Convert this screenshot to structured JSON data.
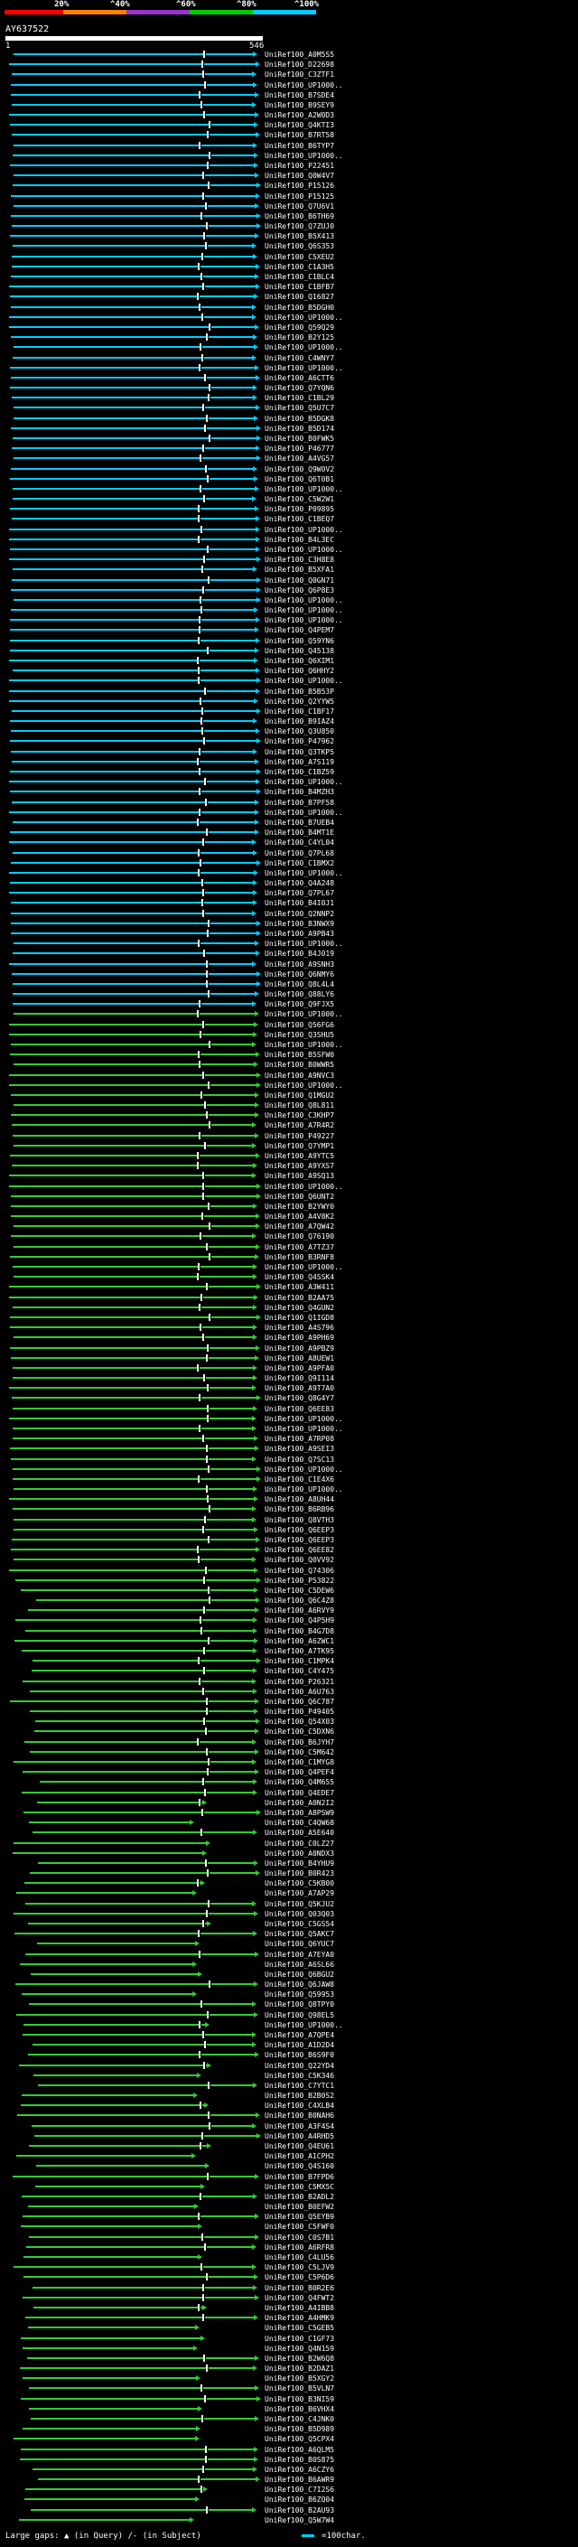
{
  "scale": {
    "labels": [
      "20%",
      "^40%",
      "^60%",
      "^80%",
      "^100%"
    ],
    "colors": [
      "#ff0000",
      "#ff8000",
      "#9933cc",
      "#00cc00",
      "#00ccff"
    ]
  },
  "query": {
    "name": "AY637522",
    "start": "1",
    "end": "546"
  },
  "legend": {
    "prefix": "Large gaps:",
    "query_gap": "(in Query)",
    "subject_gap": "/- (in Subject)",
    "scale_text": "=100char."
  },
  "colors": {
    "high": "#00ccff",
    "mid": "#33cc33",
    "axis": "#ffffff",
    "background": "#000000"
  },
  "hits": [
    "UniRef100_A0M5S5",
    "UniRef100_D22698",
    "UniRef100_C3ZTF1",
    "UniRef100_UP1000..",
    "UniRef100_B7SDE4",
    "UniRef100_B9SEY9",
    "UniRef100_A2W0D3",
    "UniRef100_Q4KTI3",
    "UniRef100_B7RT58",
    "UniRef100_B6TYP7",
    "UniRef100_UP1000..",
    "UniRef100_P22451",
    "UniRef100_Q0W4V7",
    "UniRef100_P15126",
    "UniRef100_P15125",
    "UniRef100_Q7U6V1",
    "UniRef100_B6TH69",
    "UniRef100_Q7ZUJ0",
    "UniRef100_B5X413",
    "UniRef100_Q6S353",
    "UniRef100_C5XEU2",
    "UniRef100_C1A3H5",
    "UniRef100_C1BLC4",
    "UniRef100_C1BFB7",
    "UniRef100_Q16827",
    "UniRef100_B5DGH0",
    "UniRef100_UP1000..",
    "UniRef100_Q59Q29",
    "UniRef100_B2Y125",
    "UniRef100_UP1000..",
    "UniRef100_C4WNY7",
    "UniRef100_UP1000..",
    "UniRef100_A6CTT6",
    "UniRef100_Q7YQN6",
    "UniRef100_C1BL29",
    "UniRef100_Q5U7C7",
    "UniRef100_B5DGK8",
    "UniRef100_B5D174",
    "UniRef100_B0FWK5",
    "UniRef100_P46777",
    "UniRef100_A4VG57",
    "UniRef100_Q9W0V2",
    "UniRef100_Q6T0B1",
    "UniRef100_UP1000..",
    "UniRef100_C5W2W1",
    "UniRef100_P09895",
    "UniRef100_C1BEQ7",
    "UniRef100_UP1000..",
    "UniRef100_B4L3EC",
    "UniRef100_UP1000..",
    "UniRef100_C3H8E8",
    "UniRef100_B5XFA1",
    "UniRef100_Q0GN71",
    "UniRef100_Q6P8E3",
    "UniRef100_UP1000..",
    "UniRef100_UP1000..",
    "UniRef100_UP1000..",
    "UniRef100_Q4PEM7",
    "UniRef100_Q59YN6",
    "UniRef100_Q45138",
    "UniRef100_Q6XIM1",
    "UniRef100_Q6HHY2",
    "UniRef100_UP1000..",
    "UniRef100_B5B53P",
    "UniRef100_Q2YYW5",
    "UniRef100_C1BF17",
    "UniRef100_B9IAZ4",
    "UniRef100_Q3U850",
    "UniRef100_P47962",
    "UniRef100_Q3TKP5",
    "UniRef100_A7S119",
    "UniRef100_C1BZ59",
    "UniRef100_UP1000..",
    "UniRef100_B4MZH3",
    "UniRef100_B7PF58",
    "UniRef100_UP1000..",
    "UniRef100_B7UEB4",
    "UniRef100_B4MT1E",
    "UniRef100_C4YL04",
    "UniRef100_Q7PL68",
    "UniRef100_C1BMX2",
    "UniRef100_UP1000..",
    "UniRef100_Q4A248",
    "UniRef100_Q7PL67",
    "UniRef100_B4I0J1",
    "UniRef100_Q2NNP2",
    "UniRef100_B3NWX9",
    "UniRef100_A9PB43",
    "UniRef100_UP1000..",
    "UniRef100_B4J019",
    "UniRef100_A9SNH3",
    "UniRef100_Q6NMY6",
    "UniRef100_Q8L4L4",
    "UniRef100_Q88LY6",
    "UniRef100_Q9FJX5",
    "UniRef100_UP1000..",
    "UniRef100_Q56FG6",
    "UniRef100_Q3SHU5",
    "UniRef100_UP1000..",
    "UniRef100_B5SFW0",
    "UniRef100_B0WWR5",
    "UniRef100_A9NVC3",
    "UniRef100_UP1000..",
    "UniRef100_Q1MGU2",
    "UniRef100_Q8L811",
    "UniRef100_C3KHP7",
    "UniRef100_A7R4R2",
    "UniRef100_P49227",
    "UniRef100_Q7YMP1",
    "UniRef100_A9YTC5",
    "UniRef100_A9YXS7",
    "UniRef100_A9SQ13",
    "UniRef100_UP1000..",
    "UniRef100_Q6UNT2",
    "UniRef100_B2YWY0",
    "UniRef100_A4V8K2",
    "UniRef100_A7QW42",
    "UniRef100_Q76190",
    "UniRef100_A7TZ37",
    "UniRef100_B3RNF8",
    "UniRef100_UP1000..",
    "UniRef100_Q4SSK4",
    "UniRef100_A3W411",
    "UniRef100_B2AA75",
    "UniRef100_Q4GUN2",
    "UniRef100_Q1IGD8",
    "UniRef100_A4S796",
    "UniRef100_A9PH69",
    "UniRef100_A9PBZ9",
    "UniRef100_A8UEW1",
    "UniRef100_A9PFA0",
    "UniRef100_Q9I114",
    "UniRef100_A9T7A0",
    "UniRef100_Q8G4Y7",
    "UniRef100_Q6EE83",
    "UniRef100_UP1000..",
    "UniRef100_UP1000..",
    "UniRef100_A7RP08",
    "UniRef100_A9SEI3",
    "UniRef100_Q7SC13",
    "UniRef100_UP1000..",
    "UniRef100_C1E4X6",
    "UniRef100_UP1000..",
    "UniRef100_A8UH44",
    "UniRef100_B6RB96",
    "UniRef100_Q8VTH3",
    "UniRef100_Q6EEP3",
    "UniRef100_Q6EEP3",
    "UniRef100_Q6EE82",
    "UniRef100_Q0VV92",
    "UniRef100_Q74306",
    "UniRef100_P53822",
    "UniRef100_C5DEW6",
    "UniRef100_Q6C4Z8",
    "UniRef100_A6RVY9",
    "UniRef100_Q4P5H9",
    "UniRef100_B4G7D8",
    "UniRef100_A6ZWC1",
    "UniRef100_A7TK95",
    "UniRef100_C1MPK4",
    "UniRef100_C4Y475",
    "UniRef100_P26321",
    "UniRef100_A6U763",
    "UniRef100_Q6C787",
    "UniRef100_P49405",
    "UniRef100_Q54X03",
    "UniRef100_C5DXN6",
    "UniRef100_B6JYH7",
    "UniRef100_C5M642",
    "UniRef100_C1MYG8",
    "UniRef100_Q4PEF4",
    "UniRef100_Q4M655",
    "UniRef100_Q4EDE7",
    "UniRef100_A0N2I2",
    "UniRef100_A8PSW9",
    "UniRef100_C4QW68",
    "UniRef100_A5E640",
    "UniRef100_C0LZ27",
    "UniRef100_A0NDX3",
    "UniRef100_B4YHU9",
    "UniRef100_B0R423",
    "UniRef100_C5KB00",
    "UniRef100_A7AP29",
    "UniRef100_Q5KJU2",
    "UniRef100_Q03Q03",
    "UniRef100_C5GS54",
    "UniRef100_Q5AKC7",
    "UniRef100_Q6YUC7",
    "UniRef100_A7EYA0",
    "UniRef100_A6SL66",
    "UniRef100_Q6BGU2",
    "UniRef100_Q6JAW8",
    "UniRef100_Q59953",
    "UniRef100_Q8TPY0",
    "UniRef100_Q98EL5",
    "UniRef100_UP1000..",
    "UniRef100_A7QPE4",
    "UniRef100_A1D2D4",
    "UniRef100_B6S9F0",
    "UniRef100_Q22YD4",
    "UniRef100_C5K346",
    "UniRef100_C7YTC1",
    "UniRef100_B2B0S2",
    "UniRef100_C4XLB4",
    "UniRef100_B0NAH6",
    "UniRef100_A3F4S4",
    "UniRef100_A4RHD5",
    "UniRef100_Q4EU61",
    "UniRef100_A1CPH2",
    "UniRef100_Q4S160",
    "UniRef100_B7FPD6",
    "UniRef100_C5MX5C",
    "UniRef100_B2ADL2",
    "UniRef100_B0EFW2",
    "UniRef100_Q5EYB9",
    "UniRef100_C5FWF0",
    "UniRef100_C0S7B1",
    "UniRef100_A6RFR8",
    "UniRef100_C4LU56",
    "UniRef100_C5LJV9",
    "UniRef100_C5P6D6",
    "UniRef100_B0R2E6",
    "UniRef100_Q4FWT2",
    "UniRef100_A4IBB8",
    "UniRef100_A4HMK9",
    "UniRef100_C5GEB5",
    "UniRef100_C1GF73",
    "UniRef100_Q4N159",
    "UniRef100_B2W6Q8",
    "UniRef100_B2DAZ1",
    "UniRef100_B5XGY2",
    "UniRef100_B5VLN7",
    "UniRef100_B3NI59",
    "UniRef100_B6VHX4",
    "UniRef100_C4JNK0",
    "UniRef100_B5D989",
    "UniRef100_Q5CPX4",
    "UniRef100_A6QLM5",
    "UniRef100_B0S875",
    "UniRef100_A6CZY6",
    "UniRef100_B6AWR9",
    "UniRef100_C7I2S6",
    "UniRef100_B6ZQ04",
    "UniRef100_B2AU93",
    "UniRef100_Q5W7W4"
  ]
}
